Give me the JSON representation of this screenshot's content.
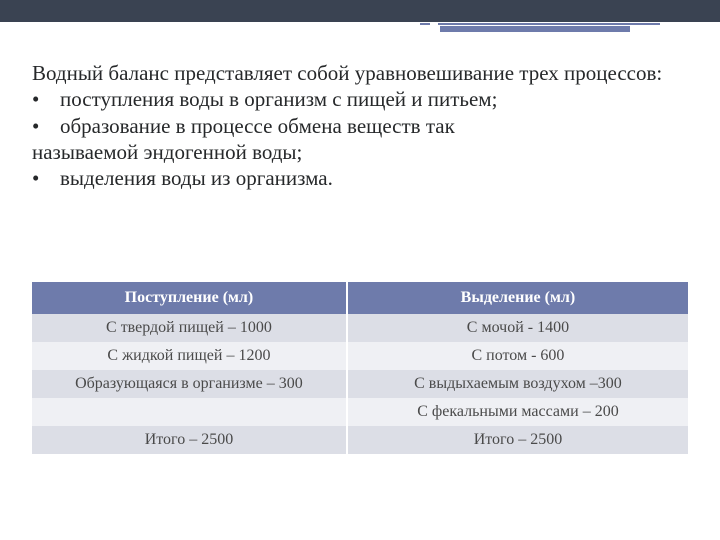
{
  "colors": {
    "topbar": "#3a4352",
    "accent": "#6e7bab",
    "text": "#26282a",
    "th_bg": "#6e7bab",
    "th_fg": "#ffffff",
    "row_odd": "#dcdee6",
    "row_even": "#eff0f4"
  },
  "intro": {
    "text": "Водный баланс представляет собой уравновешивание трех процессов:",
    "fontsize": 21
  },
  "bullets": [
    "поступления воды в организм с пищей и питьем;",
    "образование в процессе обмена веществ так называемой эндогенной воды;",
    "выделения воды из организма."
  ],
  "bullet_char": "•",
  "table": {
    "columns": [
      "Поступление (мл)",
      "Выделение (мл)"
    ],
    "col_widths": [
      "48%",
      "52%"
    ],
    "rows": [
      [
        "С твердой пищей – 1000",
        "С мочой - 1400"
      ],
      [
        "С жидкой пищей – 1200",
        "С потом - 600"
      ],
      [
        "Образующаяся в организме – 300",
        "С выдыхаемым воздухом –300"
      ],
      [
        "",
        "С фекальными массами – 200"
      ],
      [
        "Итого – 2500",
        "Итого – 2500"
      ]
    ],
    "header_fontsize": 16,
    "cell_fontsize": 16
  }
}
